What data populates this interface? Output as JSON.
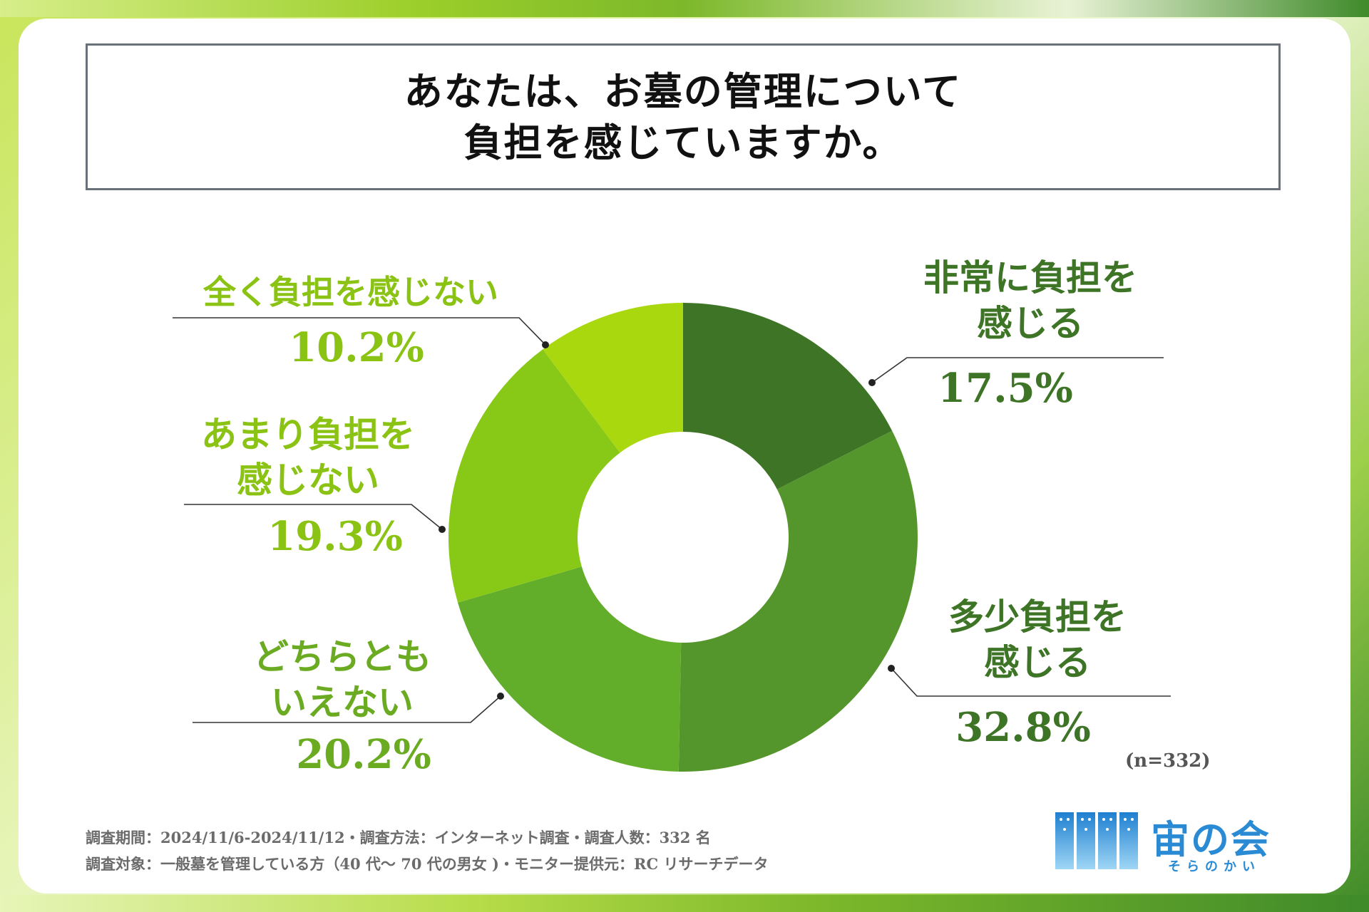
{
  "title": {
    "line1": "あなたは、お墓の管理について",
    "line2": "負担を感じていますか。"
  },
  "chart_data": {
    "type": "pie",
    "style": "donut",
    "title": "あなたは、お墓の管理について負担を感じていますか。",
    "categories": [
      "非常に負担を感じる",
      "多少負担を感じる",
      "どちらともいえない",
      "あまり負担を感じない",
      "全く負担を感じない"
    ],
    "values": [
      17.5,
      32.8,
      20.2,
      19.3,
      10.2
    ],
    "colors": [
      "#3d7425",
      "#55962c",
      "#62ad2a",
      "#88c918",
      "#aad80e"
    ],
    "sample_size": "(n=332)"
  },
  "labels": {
    "very_burden": {
      "line1": "非常に負担を",
      "line2": "感じる",
      "pct": "17.5%"
    },
    "somewhat_burden": {
      "line1": "多少負担を",
      "line2": "感じる",
      "pct": "32.8%"
    },
    "neither": {
      "line1": "どちらとも",
      "line2": "いえない",
      "pct": "20.2%"
    },
    "not_much": {
      "line1": "あまり負担を",
      "line2": "感じない",
      "pct": "19.3%"
    },
    "not_at_all": {
      "line1": "全く負担を感じない",
      "pct": "10.2%"
    }
  },
  "n_label": "(n=332)",
  "footnotes": {
    "line1": "調査期間：2024/11/6-2024/11/12・調査方法：インターネット調査・調査人数：332 名",
    "line2": "調査対象：一般墓を管理している方（40 代～ 70 代の男女 )・モニター提供元：RC リサーチデータ"
  },
  "logo": {
    "name": "宙の会",
    "reading": "そらのかい",
    "color": "#2a8bd4"
  }
}
